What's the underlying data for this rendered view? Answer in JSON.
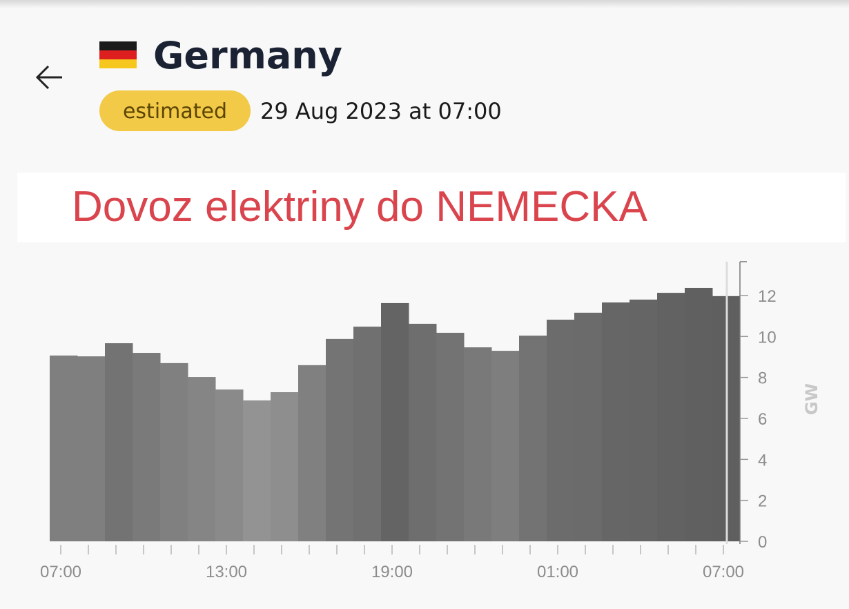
{
  "header": {
    "title": "Germany",
    "badge": "estimated",
    "datetime": "29 Aug 2023 at 07:00"
  },
  "banner": "Dovoz elektriny do NEMECKA",
  "chart_data": {
    "type": "bar",
    "categories": [
      "07:00",
      null,
      null,
      null,
      null,
      null,
      "13:00",
      null,
      null,
      null,
      null,
      null,
      "19:00",
      null,
      null,
      null,
      null,
      null,
      "01:00",
      null,
      null,
      null,
      null,
      null,
      "07:00"
    ],
    "values": [
      9.07,
      9.03,
      9.67,
      9.2,
      8.7,
      8.02,
      7.41,
      6.88,
      7.28,
      8.6,
      9.88,
      10.48,
      11.63,
      10.62,
      10.18,
      9.47,
      9.3,
      10.04,
      10.82,
      11.16,
      11.66,
      11.8,
      12.13,
      12.37,
      11.97
    ],
    "colors": [
      "#7f7f7f",
      "#7f7f7f",
      "#737373",
      "#7a7a7a",
      "#808080",
      "#858585",
      "#8a8a8a",
      "#939393",
      "#8e8e8e",
      "#808080",
      "#747474",
      "#707070",
      "#646464",
      "#6e6e6e",
      "#737373",
      "#797979",
      "#7e7e7e",
      "#737373",
      "#6c6c6c",
      "#6b6b6b",
      "#666666",
      "#656565",
      "#626262",
      "#606060",
      "#5f5f5f"
    ],
    "ylabel": "GW",
    "ylim": [
      0,
      13.65
    ],
    "yticks": [
      0,
      2,
      4,
      6,
      8,
      10,
      12
    ]
  }
}
